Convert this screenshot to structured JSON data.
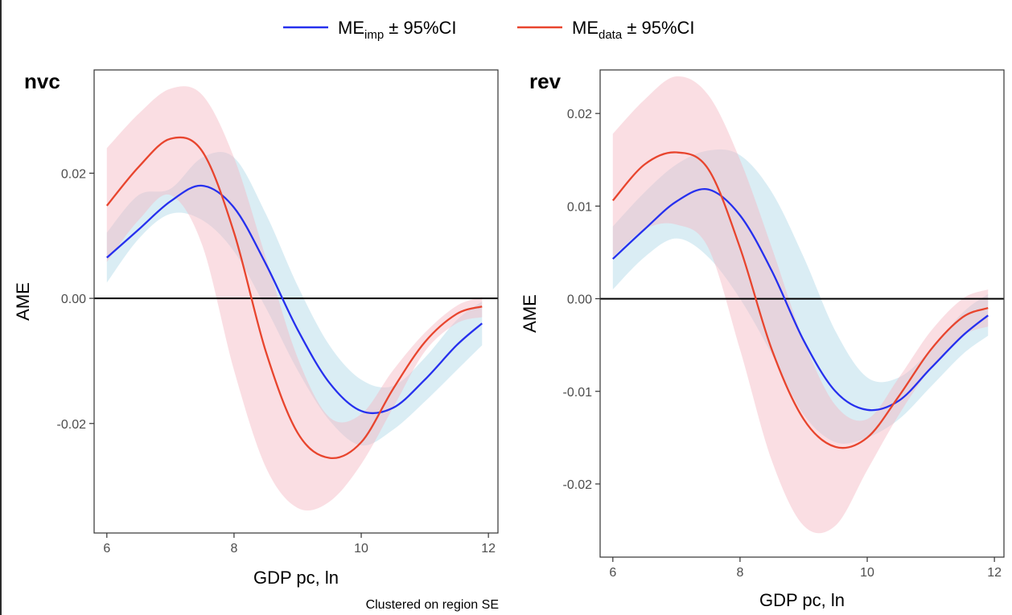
{
  "legend": {
    "items": [
      {
        "base": "ME",
        "sub": "imp",
        "suffix": " ± 95%CI",
        "color": "#2630ee"
      },
      {
        "base": "ME",
        "sub": "data",
        "suffix": " ± 95%CI",
        "color": "#e8452e"
      }
    ]
  },
  "caption": "Clustered on region SE",
  "colors": {
    "imp_line": "#2630ee",
    "imp_band": "#add8e6",
    "data_line": "#e8452e",
    "data_band": "#f4b6c1",
    "zero_line": "#000000",
    "frame": "#333333"
  },
  "chart_data": [
    {
      "type": "line",
      "title": "nvc",
      "xlabel": "GDP pc, ln",
      "ylabel": "AME",
      "xlim": [
        5.8,
        12.15
      ],
      "ylim": [
        -0.0375,
        0.0365
      ],
      "xticks": [
        6,
        8,
        10,
        12
      ],
      "xtick_labels": [
        "6",
        "8",
        "10",
        "12"
      ],
      "yticks": [
        0.02,
        0.0,
        -0.02
      ],
      "ytick_labels": [
        "0.02",
        "0.00",
        "-0.02"
      ],
      "hline": 0,
      "grid": false,
      "x": [
        6.0,
        6.5,
        7.0,
        7.5,
        8.0,
        8.5,
        9.0,
        9.5,
        10.0,
        10.5,
        11.0,
        11.5,
        11.9
      ],
      "series": [
        {
          "name": "MEimp ± 95%CI",
          "values": [
            0.0065,
            0.011,
            0.0155,
            0.018,
            0.0145,
            0.0055,
            -0.005,
            -0.0135,
            -0.018,
            -0.0175,
            -0.013,
            -0.0075,
            -0.004
          ],
          "lower": [
            0.0025,
            0.0095,
            0.0135,
            0.0125,
            0.0075,
            -0.0015,
            -0.0115,
            -0.0195,
            -0.0235,
            -0.021,
            -0.0165,
            -0.0115,
            -0.0075
          ],
          "upper": [
            0.0105,
            0.0165,
            0.0175,
            0.0225,
            0.0225,
            0.0135,
            0.002,
            -0.0075,
            -0.013,
            -0.014,
            -0.0095,
            -0.0035,
            -0.0005
          ]
        },
        {
          "name": "MEdata ± 95%CI",
          "values": [
            0.0148,
            0.021,
            0.0255,
            0.0235,
            0.0105,
            -0.0085,
            -0.0215,
            -0.0255,
            -0.023,
            -0.0145,
            -0.007,
            -0.0025,
            -0.0013
          ],
          "lower": [
            0.0058,
            0.0125,
            0.0165,
            0.0085,
            -0.0115,
            -0.027,
            -0.0335,
            -0.0325,
            -0.0265,
            -0.0175,
            -0.0085,
            -0.004,
            -0.003
          ],
          "upper": [
            0.024,
            0.0295,
            0.0335,
            0.0325,
            0.0225,
            0.0065,
            -0.0095,
            -0.019,
            -0.0185,
            -0.0115,
            -0.0055,
            -0.0012,
            0.0002
          ]
        }
      ]
    },
    {
      "type": "line",
      "title": "rev",
      "xlabel": "GDP pc, ln",
      "ylabel": "AME",
      "xlim": [
        5.8,
        12.15
      ],
      "ylim": [
        -0.0279,
        0.0247
      ],
      "xticks": [
        6,
        8,
        10,
        12
      ],
      "xtick_labels": [
        "6",
        "8",
        "10",
        "12"
      ],
      "yticks": [
        0.02,
        0.01,
        0.0,
        -0.01,
        -0.02
      ],
      "ytick_labels": [
        "0.02",
        "0.01",
        "0.00",
        "-0.01",
        "-0.02"
      ],
      "hline": 0,
      "grid": false,
      "x": [
        6.0,
        6.5,
        7.0,
        7.5,
        8.0,
        8.5,
        9.0,
        9.5,
        10.0,
        10.5,
        11.0,
        11.5,
        11.9
      ],
      "series": [
        {
          "name": "MEimp ± 95%CI",
          "values": [
            0.0043,
            0.0075,
            0.0105,
            0.0118,
            0.009,
            0.003,
            -0.0045,
            -0.01,
            -0.012,
            -0.011,
            -0.0075,
            -0.004,
            -0.0018
          ],
          "lower": [
            0.001,
            0.0045,
            0.0065,
            0.0045,
            0.0,
            -0.006,
            -0.0125,
            -0.0155,
            -0.015,
            -0.013,
            -0.0095,
            -0.006,
            -0.004
          ],
          "upper": [
            0.0078,
            0.0115,
            0.0145,
            0.016,
            0.0155,
            0.0115,
            0.0045,
            -0.0035,
            -0.0085,
            -0.0085,
            -0.0055,
            -0.0015,
            0.0005
          ]
        },
        {
          "name": "MEdata ± 95%CI",
          "values": [
            0.0106,
            0.0145,
            0.0158,
            0.014,
            0.0055,
            -0.0055,
            -0.013,
            -0.016,
            -0.015,
            -0.0105,
            -0.0055,
            -0.002,
            -0.001
          ],
          "lower": [
            0.0045,
            0.0075,
            0.008,
            0.0055,
            -0.0055,
            -0.0175,
            -0.0245,
            -0.0245,
            -0.0185,
            -0.0125,
            -0.0075,
            -0.004,
            -0.003
          ],
          "upper": [
            0.0178,
            0.0215,
            0.024,
            0.022,
            0.015,
            0.0055,
            -0.0045,
            -0.0115,
            -0.013,
            -0.0085,
            -0.0035,
            0.0,
            0.001
          ]
        }
      ]
    }
  ]
}
